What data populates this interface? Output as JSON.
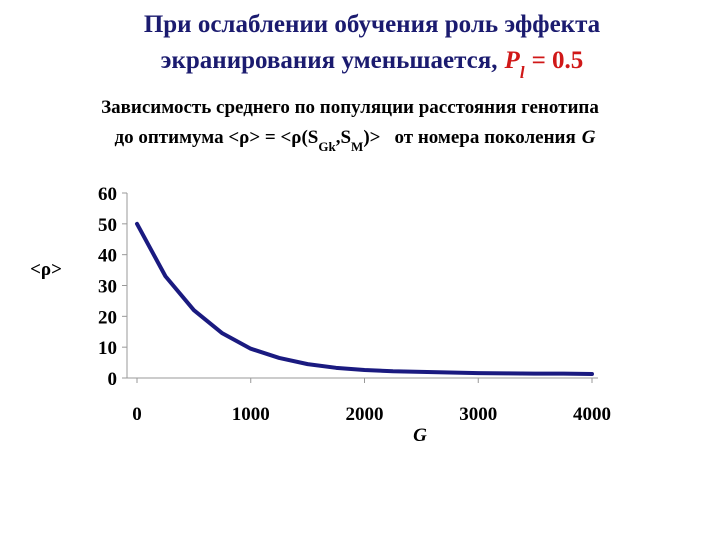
{
  "chart_data": {
    "type": "line",
    "title_line1": "При ослаблении обучения роль эффекта",
    "title_line2": "экранирования уменьшается,",
    "title_param": "P",
    "title_param_sub": "l",
    "title_param_value": "= 0.5",
    "title_param_color": "#d01818",
    "subtitle_line1": "Зависимость среднего по популяции расстояния генотипа",
    "subtitle_line2_a": "до оптимума <ρ> = <ρ(S",
    "subtitle_line2_sub1": "Gk",
    "subtitle_line2_b": ",S",
    "subtitle_line2_sub2": "M",
    "subtitle_line2_c": ")>",
    "subtitle_line2_d": "от номера поколения",
    "subtitle_line2_e": "G",
    "y_label": "<ρ>",
    "x_label": "G",
    "x": [
      0,
      250,
      500,
      750,
      1000,
      1250,
      1500,
      1750,
      2000,
      2250,
      2500,
      2750,
      3000,
      3250,
      3500,
      3750,
      4000
    ],
    "values": [
      50,
      33,
      22,
      14.5,
      9.5,
      6.5,
      4.5,
      3.3,
      2.6,
      2.2,
      2,
      1.8,
      1.6,
      1.5,
      1.4,
      1.4,
      1.3
    ],
    "color": "#1a1a80",
    "xlim": [
      0,
      4000
    ],
    "xticks": [
      0,
      1000,
      2000,
      3000,
      4000
    ],
    "ylim": [
      0,
      60
    ],
    "yticks": [
      0,
      10,
      20,
      30,
      40,
      50,
      60
    ],
    "grid": false
  }
}
